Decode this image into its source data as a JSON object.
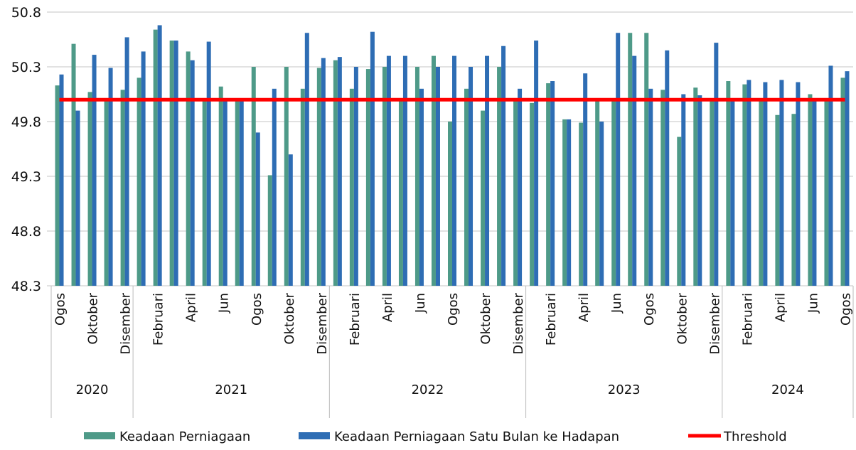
{
  "chart_data": {
    "type": "bar",
    "ylim": [
      48.3,
      50.8
    ],
    "yticks": [
      48.3,
      48.8,
      49.3,
      49.8,
      50.3,
      50.8
    ],
    "grid": true,
    "legend": "bottom",
    "groups": [
      {
        "label": "2020",
        "categories": [
          "Ogos",
          null,
          "Oktober",
          null,
          "Disember"
        ]
      },
      {
        "label": "2021",
        "categories": [
          null,
          "Februari",
          null,
          "April",
          null,
          "Jun",
          null,
          "Ogos",
          null,
          "Oktober",
          null,
          "Disember"
        ]
      },
      {
        "label": "2022",
        "categories": [
          null,
          "Februari",
          null,
          "April",
          null,
          "Jun",
          null,
          "Ogos",
          null,
          "Oktober",
          null,
          "Disember"
        ]
      },
      {
        "label": "2023",
        "categories": [
          null,
          "Februari",
          null,
          "April",
          null,
          "Jun",
          null,
          "Ogos",
          null,
          "Oktober",
          null,
          "Disember"
        ]
      },
      {
        "label": "2024",
        "categories": [
          null,
          "Februari",
          null,
          "April",
          null,
          "Jun",
          null,
          "Ogos"
        ]
      }
    ],
    "series": [
      {
        "name": "Keadaan Perniagaan",
        "type": "bar",
        "color": "#4e9a88",
        "values": [
          50.13,
          50.51,
          50.07,
          50.0,
          50.09,
          50.2,
          50.64,
          50.54,
          50.44,
          50.0,
          50.12,
          50.0,
          50.3,
          49.31,
          50.3,
          50.1,
          50.29,
          50.36,
          50.1,
          50.28,
          50.3,
          50.0,
          50.3,
          50.4,
          49.8,
          50.1,
          49.9,
          50.3,
          50.0,
          49.97,
          50.15,
          49.82,
          49.79,
          50.0,
          50.0,
          50.61,
          50.61,
          50.09,
          49.66,
          50.11,
          50.0,
          50.17,
          50.14,
          50.0,
          49.86,
          49.87,
          50.05,
          50.0,
          50.2
        ]
      },
      {
        "name": "Keadaan Perniagaan Satu Bulan ke Hadapan",
        "type": "bar",
        "color": "#2e6db4",
        "values": [
          50.23,
          49.9,
          50.41,
          50.29,
          50.57,
          50.44,
          50.68,
          50.54,
          50.36,
          50.53,
          50.0,
          50.0,
          49.7,
          50.1,
          49.5,
          50.61,
          50.38,
          50.39,
          50.3,
          50.62,
          50.4,
          50.4,
          50.1,
          50.3,
          50.4,
          50.3,
          50.4,
          50.49,
          50.1,
          50.54,
          50.17,
          49.82,
          50.24,
          49.8,
          50.61,
          50.4,
          50.1,
          50.45,
          50.05,
          50.04,
          50.52,
          50.0,
          50.18,
          50.16,
          50.18,
          50.16,
          50.0,
          50.31,
          50.26
        ]
      },
      {
        "name": "Threshold",
        "type": "line",
        "color": "#ff0000",
        "values": [
          50,
          50,
          50,
          50,
          50,
          50,
          50,
          50,
          50,
          50,
          50,
          50,
          50,
          50,
          50,
          50,
          50,
          50,
          50,
          50,
          50,
          50,
          50,
          50,
          50,
          50,
          50,
          50,
          50,
          50,
          50,
          50,
          50,
          50,
          50,
          50,
          50,
          50,
          50,
          50,
          50,
          50,
          50,
          50,
          50,
          50,
          50,
          50,
          50
        ]
      }
    ]
  }
}
